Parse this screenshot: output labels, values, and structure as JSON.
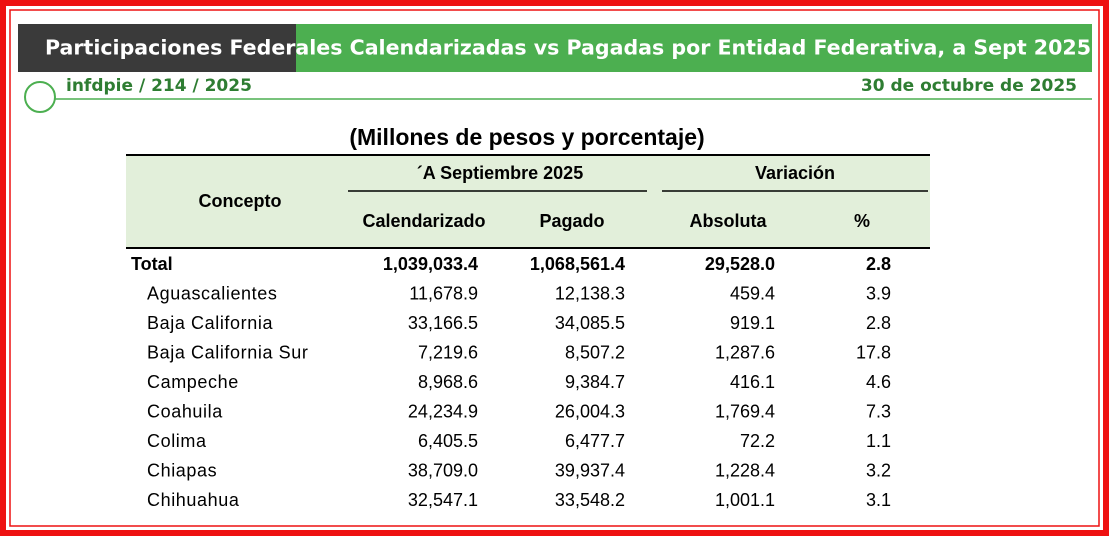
{
  "header": {
    "title": "Participaciones Federales Calendarizadas vs Pagadas por Entidad Federativa, a Sept 2025",
    "code": "infdpie / 214 / 2025",
    "date": "30 de octubre de 2025"
  },
  "table": {
    "subtitle": "(Millones de pesos y porcentaje)",
    "concept_header": "Concepto",
    "group_headers": [
      "´A Septiembre 2025",
      "Variación"
    ],
    "columns": [
      "Calendarizado",
      "Pagado",
      "Absoluta",
      "%"
    ],
    "rows": [
      [
        "Total",
        "1,039,033.4",
        "1,068,561.4",
        "29,528.0",
        "2.8"
      ],
      [
        "Aguascalientes",
        "11,678.9",
        "12,138.3",
        "459.4",
        "3.9"
      ],
      [
        "Baja California",
        "33,166.5",
        "34,085.5",
        "919.1",
        "2.8"
      ],
      [
        "Baja California Sur",
        "7,219.6",
        "8,507.2",
        "1,287.6",
        "17.8"
      ],
      [
        "Campeche",
        "8,968.6",
        "9,384.7",
        "416.1",
        "4.6"
      ],
      [
        "Coahuila",
        "24,234.9",
        "26,004.3",
        "1,769.4",
        "7.3"
      ],
      [
        "Colima",
        "6,405.5",
        "6,477.7",
        "72.2",
        "1.1"
      ],
      [
        "Chiapas",
        "38,709.0",
        "39,937.4",
        "1,228.4",
        "3.2"
      ],
      [
        "Chihuahua",
        "32,547.1",
        "33,548.2",
        "1,001.1",
        "3.1"
      ]
    ]
  }
}
